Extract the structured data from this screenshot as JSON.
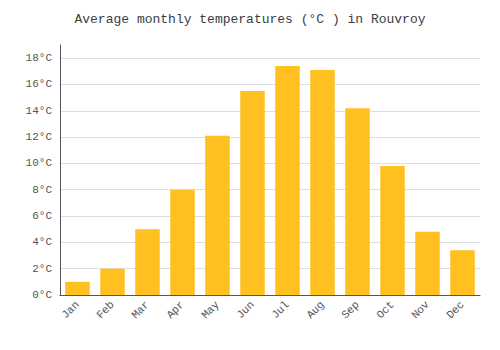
{
  "chart_data": {
    "type": "bar",
    "title": "Average monthly temperatures (°C ) in Rouvroy",
    "categories": [
      "Jan",
      "Feb",
      "Mar",
      "Apr",
      "May",
      "Jun",
      "Jul",
      "Aug",
      "Sep",
      "Oct",
      "Nov",
      "Dec"
    ],
    "values": [
      1.0,
      2.0,
      5.0,
      8.0,
      12.1,
      15.5,
      17.4,
      17.1,
      14.2,
      9.8,
      4.8,
      3.4
    ],
    "color": "#FFC020",
    "ylim": [
      0,
      19
    ],
    "yticks": [
      {
        "value": 0,
        "label": "0°C"
      },
      {
        "value": 2,
        "label": "2°C"
      },
      {
        "value": 4,
        "label": "4°C"
      },
      {
        "value": 6,
        "label": "6°C"
      },
      {
        "value": 8,
        "label": "8°C"
      },
      {
        "value": 10,
        "label": "10°C"
      },
      {
        "value": 12,
        "label": "12°C"
      },
      {
        "value": 14,
        "label": "14°C"
      },
      {
        "value": 16,
        "label": "16°C"
      },
      {
        "value": 18,
        "label": "18°C"
      }
    ],
    "grid": true
  }
}
